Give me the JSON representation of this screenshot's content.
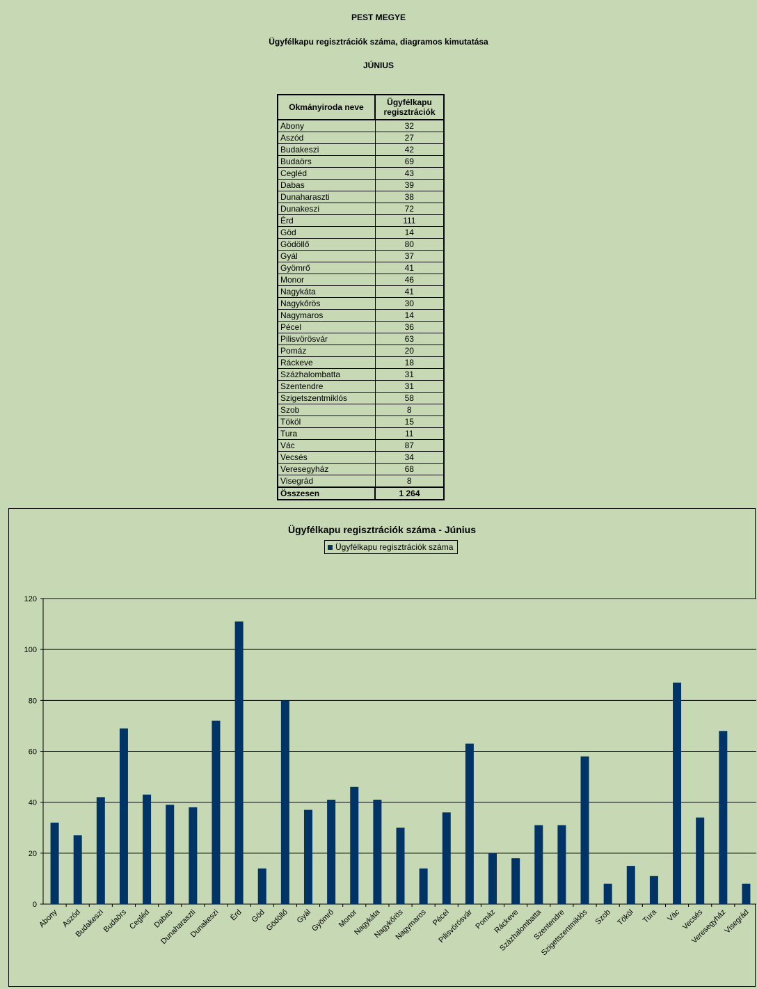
{
  "header": {
    "line1": "PEST MEGYE",
    "line2": "Ügyfélkapu regisztrációk száma, diagramos kimutatása",
    "line3": "JÚNIUS"
  },
  "table": {
    "col1": "Okmányiroda neve",
    "col2_line1": "Ügyfélkapu",
    "col2_line2": "regisztrációk",
    "total_label": "Összesen",
    "total_value": "1 264"
  },
  "chart_data": {
    "type": "bar",
    "title": "Ügyfélkapu regisztrációk száma - Június",
    "legend_position": "top-center",
    "ylim": [
      0,
      120
    ],
    "yticks": [
      0,
      20,
      40,
      60,
      80,
      100,
      120
    ],
    "grid": true,
    "bar_color": "#003366",
    "categories": [
      "Abony",
      "Aszód",
      "Budakeszi",
      "Budaörs",
      "Cegléd",
      "Dabas",
      "Dunaharaszti",
      "Dunakeszi",
      "Érd",
      "Göd",
      "Gödöllő",
      "Gyál",
      "Gyömrő",
      "Monor",
      "Nagykáta",
      "Nagykőrös",
      "Nagymaros",
      "Pécel",
      "Pilisvörösvár",
      "Pomáz",
      "Ráckeve",
      "Százhalombatta",
      "Szentendre",
      "Szigetszentmiklós",
      "Szob",
      "Tököl",
      "Tura",
      "Vác",
      "Vecsés",
      "Veresegyház",
      "Visegrád"
    ],
    "series": [
      {
        "name": "Ügyfélkapu regisztrációk száma",
        "values": [
          32,
          27,
          42,
          69,
          43,
          39,
          38,
          72,
          111,
          14,
          80,
          37,
          41,
          46,
          41,
          30,
          14,
          36,
          63,
          20,
          18,
          31,
          31,
          58,
          8,
          15,
          11,
          87,
          34,
          68,
          8
        ]
      }
    ]
  }
}
